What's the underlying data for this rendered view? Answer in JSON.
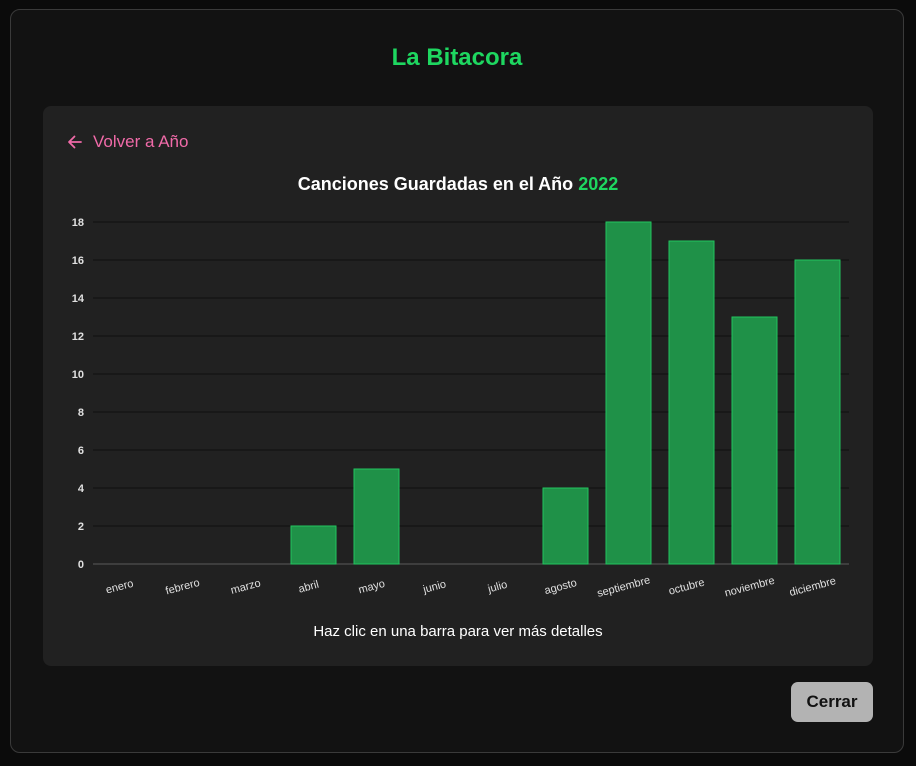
{
  "modal": {
    "title": "La Bitacora",
    "back_label": "Volver a Año",
    "chart_title_prefix": "Canciones Guardadas en el Año",
    "chart_title_year": "2022",
    "hint": "Haz clic en una barra para ver más detalles",
    "close_label": "Cerrar"
  },
  "colors": {
    "accent_green": "#1ed760",
    "bar_fill": "#1f9148",
    "bar_stroke": "#22c55e",
    "back_link": "#f06aa8"
  },
  "chart_data": {
    "type": "bar",
    "title": "Canciones Guardadas en el Año 2022",
    "xlabel": "",
    "ylabel": "",
    "categories": [
      "enero",
      "febrero",
      "marzo",
      "abril",
      "mayo",
      "junio",
      "julio",
      "agosto",
      "septiembre",
      "octubre",
      "noviembre",
      "diciembre"
    ],
    "values": [
      0,
      0,
      0,
      2,
      5,
      0,
      0,
      4,
      18,
      17,
      13,
      16
    ],
    "ylim": [
      0,
      18
    ],
    "yticks": [
      0,
      2,
      4,
      6,
      8,
      10,
      12,
      14,
      16,
      18
    ],
    "grid": true,
    "legend": "none"
  }
}
